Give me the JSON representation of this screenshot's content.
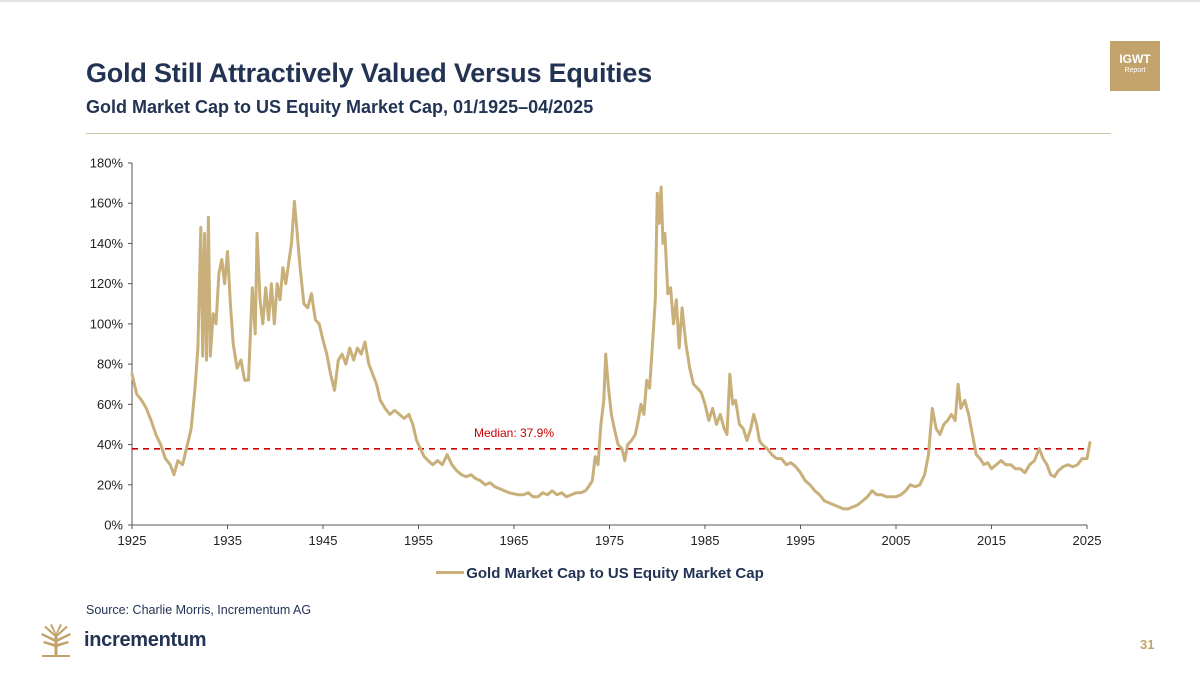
{
  "header": {
    "title": "Gold Still Attractively Valued Versus Equities",
    "subtitle": "Gold Market Cap to US Equity Market Cap, 01/1925–04/2025",
    "badge_main": "IGWT",
    "badge_sub": "Report"
  },
  "footer": {
    "source": "Source: Charlie Morris, Incrementum AG",
    "brand": "incrementum",
    "logo_icon": "wheat-tree-icon",
    "page_number": "31"
  },
  "colors": {
    "navy": "#233354",
    "gold": "#c2a36b",
    "series": "#c9b07a",
    "median": "#cc0000"
  },
  "chart_data": {
    "type": "line",
    "x_axis": {
      "min": 1925,
      "max": 2025,
      "ticks": [
        1925,
        1935,
        1945,
        1955,
        1965,
        1975,
        1985,
        1995,
        2005,
        2015,
        2025
      ]
    },
    "y_axis": {
      "min": 0,
      "max": 180,
      "ticks": [
        0,
        20,
        40,
        60,
        80,
        100,
        120,
        140,
        160,
        180
      ],
      "tick_suffix": "%"
    },
    "grid": false,
    "legend_position": "bottom",
    "median": {
      "value": 37.9,
      "label": "Median: 37.9%"
    },
    "series": [
      {
        "name": "Gold Market Cap to US Equity Market Cap",
        "points": [
          [
            1925.0,
            75
          ],
          [
            1925.5,
            65
          ],
          [
            1926.0,
            62
          ],
          [
            1926.5,
            58
          ],
          [
            1927.0,
            52
          ],
          [
            1927.5,
            45
          ],
          [
            1928.0,
            40
          ],
          [
            1928.5,
            33
          ],
          [
            1929.0,
            30
          ],
          [
            1929.4,
            25
          ],
          [
            1929.8,
            32
          ],
          [
            1930.3,
            30
          ],
          [
            1930.8,
            40
          ],
          [
            1931.2,
            48
          ],
          [
            1931.6,
            68
          ],
          [
            1931.9,
            88
          ],
          [
            1932.2,
            148
          ],
          [
            1932.4,
            84
          ],
          [
            1932.6,
            145
          ],
          [
            1932.8,
            82
          ],
          [
            1933.0,
            153
          ],
          [
            1933.2,
            84
          ],
          [
            1933.5,
            105
          ],
          [
            1933.8,
            100
          ],
          [
            1934.1,
            125
          ],
          [
            1934.4,
            132
          ],
          [
            1934.7,
            120
          ],
          [
            1935.0,
            136
          ],
          [
            1935.3,
            110
          ],
          [
            1935.6,
            90
          ],
          [
            1936.0,
            78
          ],
          [
            1936.4,
            82
          ],
          [
            1936.8,
            72
          ],
          [
            1937.2,
            72
          ],
          [
            1937.6,
            118
          ],
          [
            1937.9,
            95
          ],
          [
            1938.1,
            145
          ],
          [
            1938.4,
            112
          ],
          [
            1938.7,
            100
          ],
          [
            1939.0,
            118
          ],
          [
            1939.3,
            102
          ],
          [
            1939.6,
            120
          ],
          [
            1939.9,
            100
          ],
          [
            1940.2,
            120
          ],
          [
            1940.5,
            112
          ],
          [
            1940.8,
            128
          ],
          [
            1941.1,
            120
          ],
          [
            1941.4,
            130
          ],
          [
            1941.7,
            140
          ],
          [
            1942.0,
            161
          ],
          [
            1942.3,
            145
          ],
          [
            1942.6,
            128
          ],
          [
            1943.0,
            110
          ],
          [
            1943.4,
            108
          ],
          [
            1943.8,
            115
          ],
          [
            1944.2,
            102
          ],
          [
            1944.6,
            100
          ],
          [
            1945.0,
            92
          ],
          [
            1945.4,
            85
          ],
          [
            1945.8,
            75
          ],
          [
            1946.2,
            67
          ],
          [
            1946.6,
            82
          ],
          [
            1947.0,
            85
          ],
          [
            1947.4,
            80
          ],
          [
            1947.8,
            88
          ],
          [
            1948.2,
            82
          ],
          [
            1948.6,
            88
          ],
          [
            1949.0,
            85
          ],
          [
            1949.4,
            91
          ],
          [
            1949.8,
            80
          ],
          [
            1950.2,
            75
          ],
          [
            1950.6,
            70
          ],
          [
            1951.0,
            62
          ],
          [
            1951.5,
            58
          ],
          [
            1952.0,
            55
          ],
          [
            1952.5,
            57
          ],
          [
            1953.0,
            55
          ],
          [
            1953.5,
            53
          ],
          [
            1954.0,
            55
          ],
          [
            1954.4,
            50
          ],
          [
            1954.8,
            42
          ],
          [
            1955.2,
            38
          ],
          [
            1955.6,
            34
          ],
          [
            1956.0,
            32
          ],
          [
            1956.5,
            30
          ],
          [
            1957.0,
            32
          ],
          [
            1957.5,
            30
          ],
          [
            1958.0,
            35
          ],
          [
            1958.5,
            30
          ],
          [
            1959.0,
            27
          ],
          [
            1959.5,
            25
          ],
          [
            1960.0,
            24
          ],
          [
            1960.5,
            25
          ],
          [
            1961.0,
            23
          ],
          [
            1961.5,
            22
          ],
          [
            1962.0,
            20
          ],
          [
            1962.5,
            21
          ],
          [
            1963.0,
            19
          ],
          [
            1963.5,
            18
          ],
          [
            1964.0,
            17
          ],
          [
            1964.5,
            16
          ],
          [
            1965.0,
            15.5
          ],
          [
            1965.5,
            15
          ],
          [
            1966.0,
            15
          ],
          [
            1966.5,
            16
          ],
          [
            1967.0,
            14
          ],
          [
            1967.5,
            14
          ],
          [
            1968.0,
            16
          ],
          [
            1968.5,
            15
          ],
          [
            1969.0,
            17
          ],
          [
            1969.5,
            15
          ],
          [
            1970.0,
            16
          ],
          [
            1970.5,
            14
          ],
          [
            1971.0,
            15
          ],
          [
            1971.5,
            16
          ],
          [
            1972.0,
            16
          ],
          [
            1972.5,
            17
          ],
          [
            1972.8,
            19
          ],
          [
            1973.2,
            22
          ],
          [
            1973.5,
            34
          ],
          [
            1973.8,
            30
          ],
          [
            1974.1,
            50
          ],
          [
            1974.4,
            62
          ],
          [
            1974.6,
            85
          ],
          [
            1974.9,
            68
          ],
          [
            1975.2,
            55
          ],
          [
            1975.5,
            48
          ],
          [
            1975.9,
            40
          ],
          [
            1976.3,
            38
          ],
          [
            1976.6,
            32
          ],
          [
            1976.9,
            40
          ],
          [
            1977.3,
            42
          ],
          [
            1977.7,
            45
          ],
          [
            1978.0,
            52
          ],
          [
            1978.3,
            60
          ],
          [
            1978.6,
            55
          ],
          [
            1978.9,
            72
          ],
          [
            1979.2,
            68
          ],
          [
            1979.5,
            90
          ],
          [
            1979.8,
            112
          ],
          [
            1980.0,
            165
          ],
          [
            1980.2,
            150
          ],
          [
            1980.4,
            168
          ],
          [
            1980.6,
            140
          ],
          [
            1980.8,
            145
          ],
          [
            1981.1,
            115
          ],
          [
            1981.4,
            118
          ],
          [
            1981.7,
            100
          ],
          [
            1982.0,
            112
          ],
          [
            1982.3,
            88
          ],
          [
            1982.6,
            108
          ],
          [
            1983.0,
            90
          ],
          [
            1983.4,
            78
          ],
          [
            1983.8,
            70
          ],
          [
            1984.2,
            68
          ],
          [
            1984.6,
            66
          ],
          [
            1985.0,
            60
          ],
          [
            1985.4,
            52
          ],
          [
            1985.8,
            58
          ],
          [
            1986.2,
            50
          ],
          [
            1986.6,
            55
          ],
          [
            1987.0,
            48
          ],
          [
            1987.3,
            45
          ],
          [
            1987.6,
            75
          ],
          [
            1987.9,
            60
          ],
          [
            1988.2,
            62
          ],
          [
            1988.6,
            50
          ],
          [
            1989.0,
            48
          ],
          [
            1989.4,
            42
          ],
          [
            1989.8,
            48
          ],
          [
            1990.1,
            55
          ],
          [
            1990.4,
            50
          ],
          [
            1990.7,
            42
          ],
          [
            1991.0,
            40
          ],
          [
            1991.5,
            38
          ],
          [
            1992.0,
            35
          ],
          [
            1992.5,
            33
          ],
          [
            1993.0,
            33
          ],
          [
            1993.5,
            30
          ],
          [
            1994.0,
            31
          ],
          [
            1994.5,
            29
          ],
          [
            1995.0,
            26
          ],
          [
            1995.5,
            22
          ],
          [
            1996.0,
            20
          ],
          [
            1996.5,
            17
          ],
          [
            1997.0,
            15
          ],
          [
            1997.5,
            12
          ],
          [
            1998.0,
            11
          ],
          [
            1998.5,
            10
          ],
          [
            1999.0,
            9
          ],
          [
            1999.5,
            8
          ],
          [
            2000.0,
            8
          ],
          [
            2000.5,
            9
          ],
          [
            2001.0,
            10
          ],
          [
            2001.5,
            12
          ],
          [
            2002.0,
            14
          ],
          [
            2002.5,
            17
          ],
          [
            2003.0,
            15
          ],
          [
            2003.5,
            15
          ],
          [
            2004.0,
            14
          ],
          [
            2004.5,
            14
          ],
          [
            2005.0,
            14
          ],
          [
            2005.5,
            15
          ],
          [
            2006.0,
            17
          ],
          [
            2006.5,
            20
          ],
          [
            2007.0,
            19
          ],
          [
            2007.5,
            20
          ],
          [
            2008.0,
            25
          ],
          [
            2008.4,
            35
          ],
          [
            2008.8,
            58
          ],
          [
            2009.2,
            48
          ],
          [
            2009.6,
            45
          ],
          [
            2010.0,
            50
          ],
          [
            2010.4,
            52
          ],
          [
            2010.8,
            55
          ],
          [
            2011.2,
            52
          ],
          [
            2011.5,
            70
          ],
          [
            2011.8,
            58
          ],
          [
            2012.2,
            62
          ],
          [
            2012.6,
            55
          ],
          [
            2013.0,
            45
          ],
          [
            2013.4,
            35
          ],
          [
            2013.8,
            33
          ],
          [
            2014.2,
            30
          ],
          [
            2014.6,
            31
          ],
          [
            2015.0,
            28
          ],
          [
            2015.5,
            30
          ],
          [
            2016.0,
            32
          ],
          [
            2016.5,
            30
          ],
          [
            2017.0,
            30
          ],
          [
            2017.5,
            28
          ],
          [
            2018.0,
            28
          ],
          [
            2018.5,
            26
          ],
          [
            2019.0,
            30
          ],
          [
            2019.5,
            32
          ],
          [
            2020.0,
            38
          ],
          [
            2020.4,
            33
          ],
          [
            2020.8,
            30
          ],
          [
            2021.2,
            25
          ],
          [
            2021.6,
            24
          ],
          [
            2022.0,
            27
          ],
          [
            2022.5,
            29
          ],
          [
            2023.0,
            30
          ],
          [
            2023.5,
            29
          ],
          [
            2024.0,
            30
          ],
          [
            2024.5,
            33
          ],
          [
            2025.0,
            33
          ],
          [
            2025.3,
            41
          ]
        ]
      }
    ]
  }
}
